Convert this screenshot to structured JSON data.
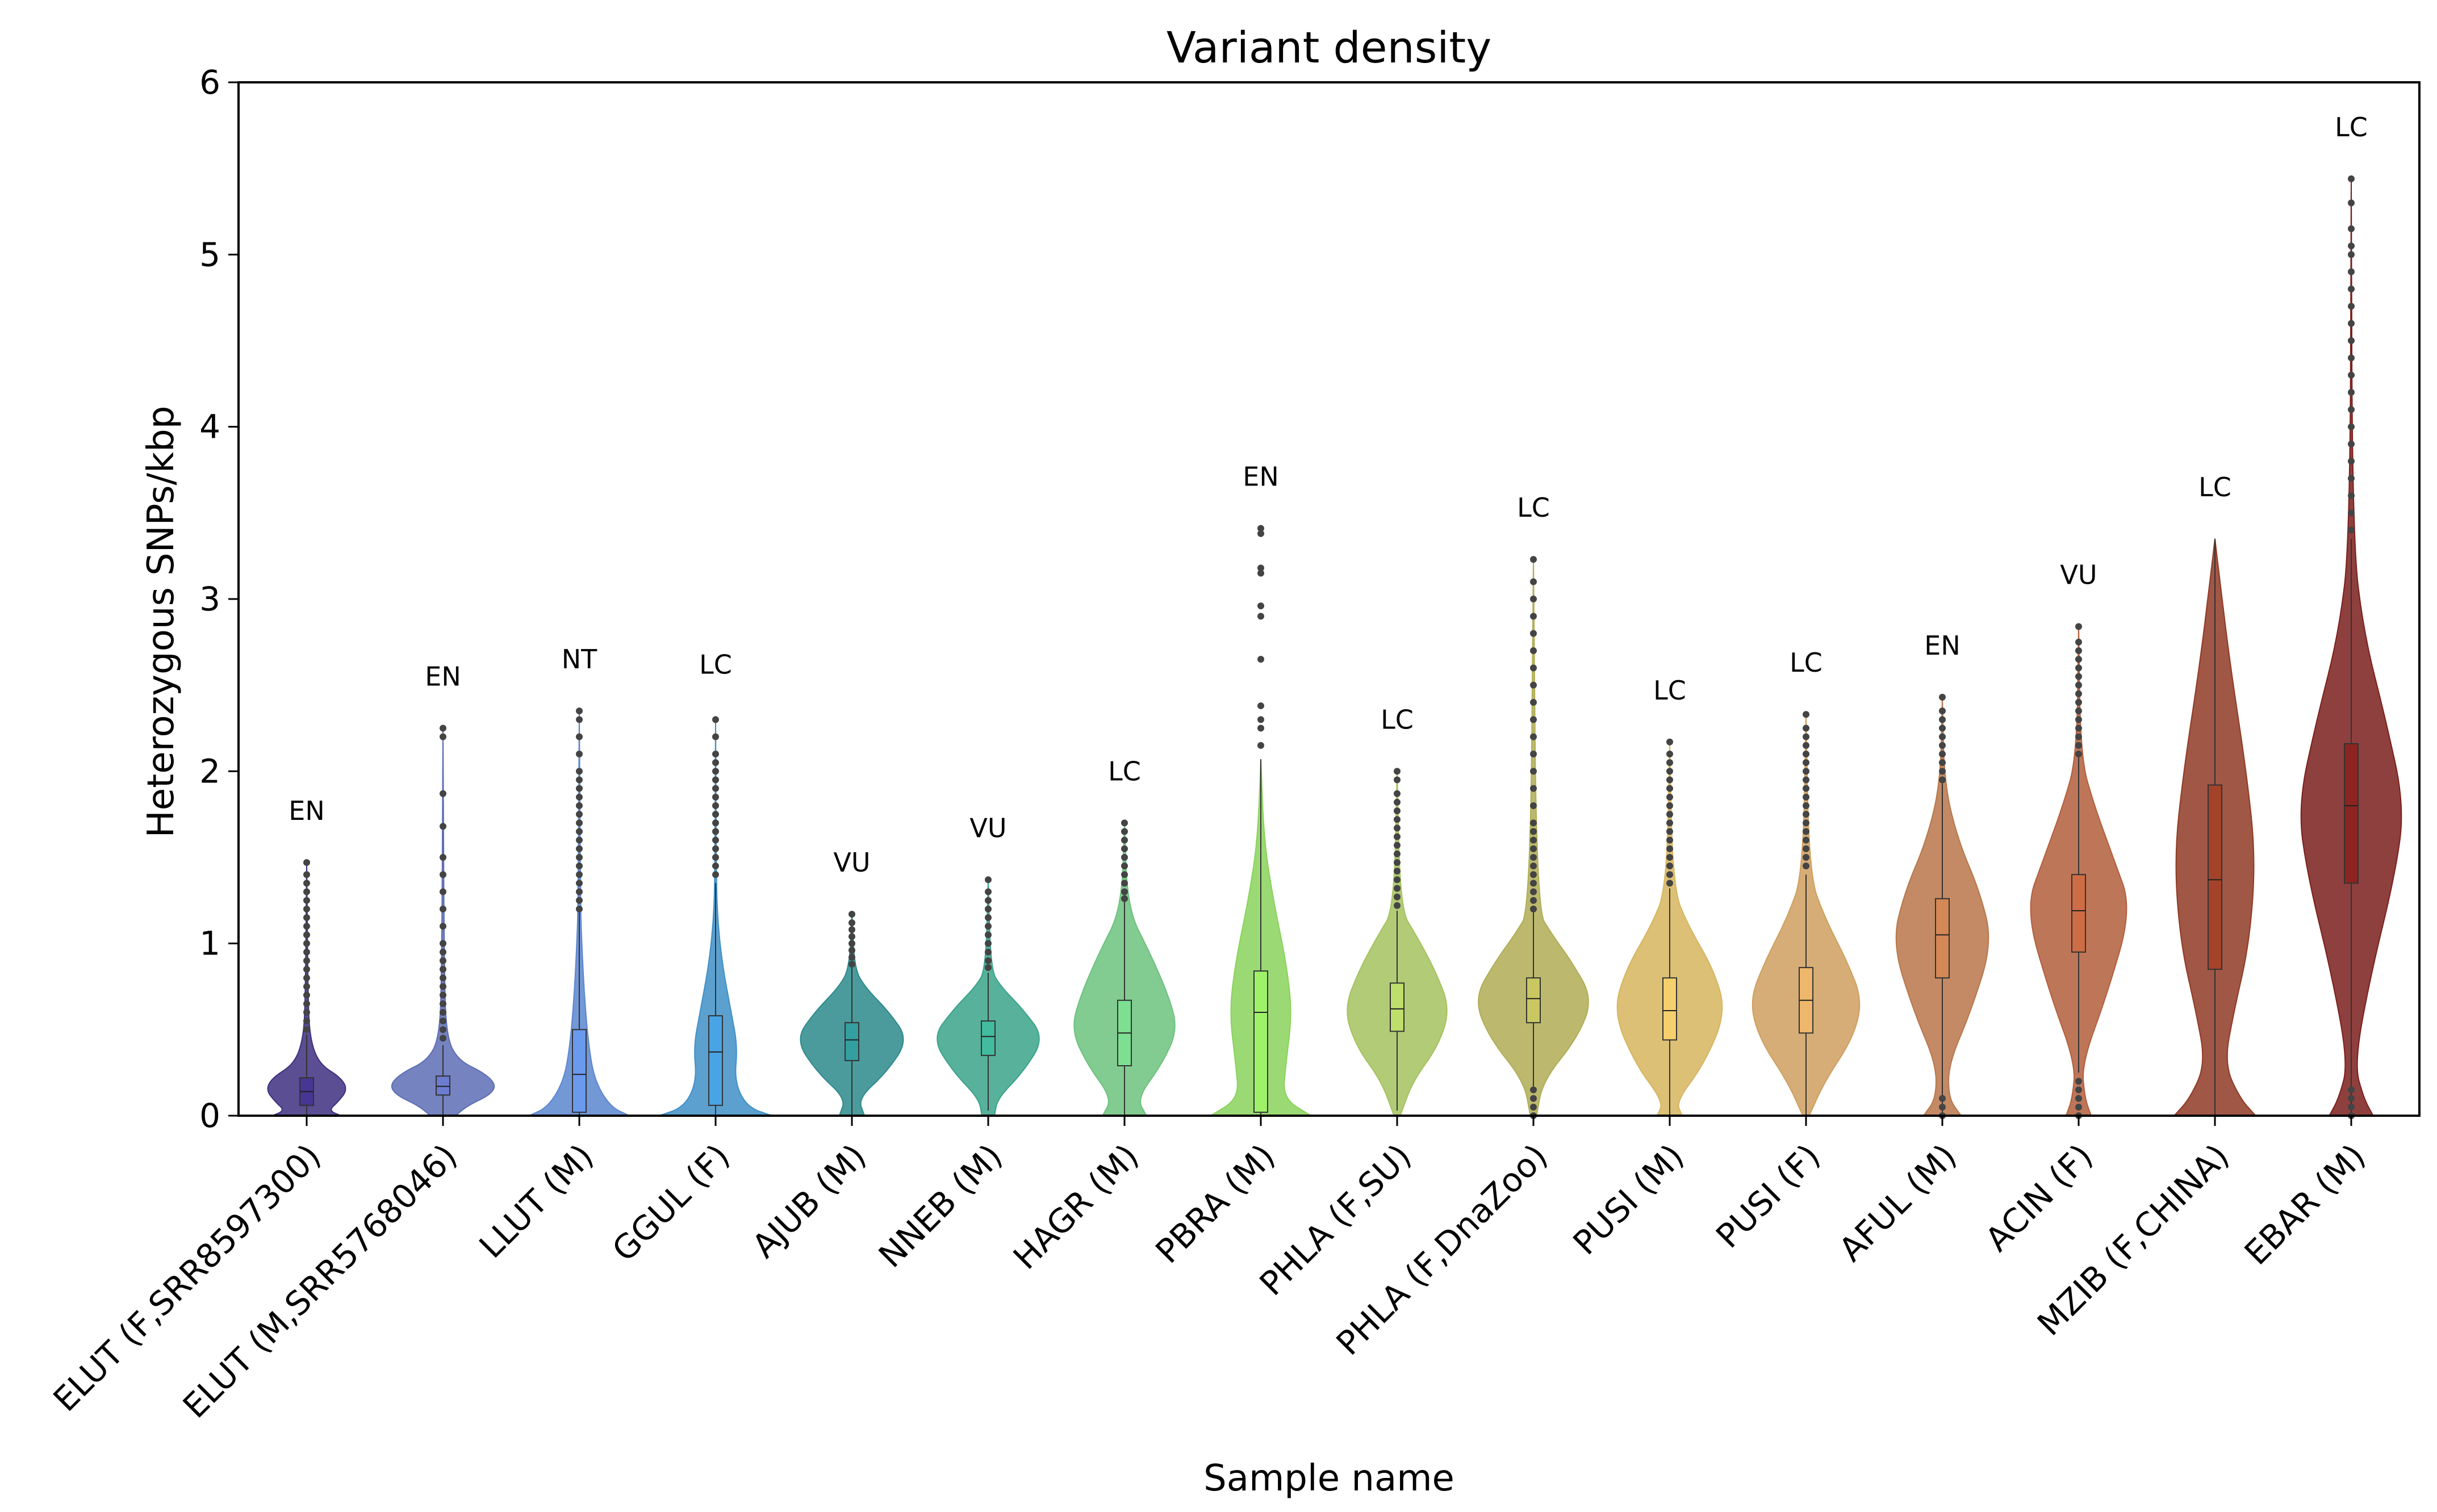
{
  "chart_data": {
    "type": "violin",
    "title": "Variant density",
    "xlabel": "Sample name",
    "ylabel": "Heterozygous SNPs/kbp",
    "ylim": [
      0,
      6
    ],
    "yticks": [
      "0",
      "1",
      "2",
      "3",
      "4",
      "5",
      "6"
    ],
    "grid": false,
    "samples": [
      {
        "name": "ELUT (F,SRR8597300)",
        "status": "EN",
        "color": "#3e2f80",
        "q1": 0.06,
        "median": 0.14,
        "q3": 0.22,
        "whisker_low": 0.0,
        "whisker_high": 0.47,
        "max": 1.47,
        "density": [
          [
            0.0,
            0.55
          ],
          [
            0.03,
            0.35
          ],
          [
            0.08,
            0.5
          ],
          [
            0.15,
            0.65
          ],
          [
            0.22,
            0.55
          ],
          [
            0.3,
            0.2
          ],
          [
            0.45,
            0.05
          ],
          [
            0.7,
            0.02
          ],
          [
            1.47,
            0.0
          ]
        ],
        "outliers": [
          0.5,
          0.55,
          0.6,
          0.65,
          0.7,
          0.75,
          0.8,
          0.85,
          0.9,
          0.95,
          1.0,
          1.05,
          1.1,
          1.15,
          1.2,
          1.25,
          1.3,
          1.35,
          1.4,
          1.47
        ]
      },
      {
        "name": "ELUT (M,SRR5768046)",
        "status": "EN",
        "color": "#5d6db5",
        "q1": 0.12,
        "median": 0.17,
        "q3": 0.23,
        "whisker_low": 0.0,
        "whisker_high": 0.41,
        "max": 2.25,
        "density": [
          [
            0.0,
            0.2
          ],
          [
            0.06,
            0.4
          ],
          [
            0.12,
            0.75
          ],
          [
            0.18,
            0.85
          ],
          [
            0.25,
            0.65
          ],
          [
            0.32,
            0.25
          ],
          [
            0.45,
            0.06
          ],
          [
            0.8,
            0.02
          ],
          [
            2.25,
            0.0
          ]
        ],
        "outliers": [
          0.45,
          0.5,
          0.55,
          0.6,
          0.65,
          0.7,
          0.75,
          0.8,
          0.85,
          0.9,
          0.95,
          1.0,
          1.1,
          1.2,
          1.3,
          1.4,
          1.5,
          1.68,
          1.87,
          2.2,
          2.25
        ]
      },
      {
        "name": "LLUT (M)",
        "status": "NT",
        "color": "#5b86cf",
        "q1": 0.02,
        "median": 0.24,
        "q3": 0.5,
        "whisker_low": 0.0,
        "whisker_high": 1.18,
        "max": 2.35,
        "density": [
          [
            0.0,
            0.8
          ],
          [
            0.05,
            0.5
          ],
          [
            0.2,
            0.25
          ],
          [
            0.4,
            0.15
          ],
          [
            0.7,
            0.08
          ],
          [
            1.0,
            0.04
          ],
          [
            1.2,
            0.02
          ],
          [
            2.35,
            0.0
          ]
        ],
        "outliers": [
          1.2,
          1.25,
          1.3,
          1.35,
          1.4,
          1.45,
          1.5,
          1.55,
          1.6,
          1.65,
          1.7,
          1.75,
          1.8,
          1.85,
          1.9,
          1.95,
          2.0,
          2.1,
          2.2,
          2.3,
          2.35
        ]
      },
      {
        "name": "GGUL (F)",
        "status": "LC",
        "color": "#3f8fc7",
        "q1": 0.06,
        "median": 0.37,
        "q3": 0.58,
        "whisker_low": 0.0,
        "whisker_high": 1.35,
        "max": 2.32,
        "density": [
          [
            0.0,
            0.9
          ],
          [
            0.05,
            0.5
          ],
          [
            0.2,
            0.3
          ],
          [
            0.4,
            0.35
          ],
          [
            0.6,
            0.25
          ],
          [
            0.85,
            0.12
          ],
          [
            1.1,
            0.04
          ],
          [
            1.35,
            0.01
          ],
          [
            2.32,
            0.0
          ]
        ],
        "outliers": [
          1.4,
          1.45,
          1.5,
          1.55,
          1.6,
          1.65,
          1.7,
          1.75,
          1.8,
          1.85,
          1.9,
          1.95,
          2.0,
          2.05,
          2.1,
          2.2,
          2.3
        ]
      },
      {
        "name": "AJUB (M)",
        "status": "VU",
        "color": "#2c8a8c",
        "q1": 0.32,
        "median": 0.44,
        "q3": 0.54,
        "whisker_low": 0.0,
        "whisker_high": 0.86,
        "max": 1.17,
        "density": [
          [
            0.0,
            0.2
          ],
          [
            0.1,
            0.1
          ],
          [
            0.25,
            0.55
          ],
          [
            0.44,
            0.9
          ],
          [
            0.6,
            0.6
          ],
          [
            0.75,
            0.2
          ],
          [
            0.86,
            0.04
          ],
          [
            1.17,
            0.0
          ]
        ],
        "outliers": [
          0.88,
          0.92,
          0.96,
          1.0,
          1.04,
          1.08,
          1.12,
          1.17
        ]
      },
      {
        "name": "NNEB (M)",
        "status": "VU",
        "color": "#3aa38a",
        "q1": 0.35,
        "median": 0.46,
        "q3": 0.55,
        "whisker_low": 0.03,
        "whisker_high": 0.83,
        "max": 1.37,
        "density": [
          [
            0.0,
            0.1
          ],
          [
            0.1,
            0.15
          ],
          [
            0.25,
            0.55
          ],
          [
            0.45,
            0.9
          ],
          [
            0.62,
            0.55
          ],
          [
            0.75,
            0.2
          ],
          [
            0.85,
            0.04
          ],
          [
            1.37,
            0.0
          ]
        ],
        "outliers": [
          0.86,
          0.9,
          0.95,
          1.0,
          1.05,
          1.1,
          1.15,
          1.2,
          1.25,
          1.3,
          1.37
        ]
      },
      {
        "name": "HAGR (M)",
        "status": "LC",
        "color": "#6cc27e",
        "q1": 0.29,
        "median": 0.48,
        "q3": 0.67,
        "whisker_low": 0.0,
        "whisker_high": 1.24,
        "max": 1.7,
        "density": [
          [
            0.0,
            0.35
          ],
          [
            0.1,
            0.2
          ],
          [
            0.3,
            0.6
          ],
          [
            0.5,
            0.85
          ],
          [
            0.7,
            0.7
          ],
          [
            0.95,
            0.4
          ],
          [
            1.2,
            0.05
          ],
          [
            1.7,
            0.0
          ]
        ],
        "outliers": [
          1.26,
          1.3,
          1.35,
          1.4,
          1.45,
          1.5,
          1.55,
          1.6,
          1.65,
          1.7
        ]
      },
      {
        "name": "PBRA (M)",
        "status": "EN",
        "color": "#8ad25c",
        "q1": 0.02,
        "median": 0.6,
        "q3": 0.84,
        "whisker_low": 0.0,
        "whisker_high": 2.07,
        "max": 3.41,
        "density": [
          [
            0.0,
            0.8
          ],
          [
            0.1,
            0.35
          ],
          [
            0.3,
            0.4
          ],
          [
            0.6,
            0.5
          ],
          [
            0.9,
            0.4
          ],
          [
            1.25,
            0.2
          ],
          [
            1.6,
            0.05
          ],
          [
            2.07,
            0.0
          ]
        ],
        "outliers": [
          2.15,
          2.25,
          2.3,
          2.38,
          2.65,
          2.9,
          2.96,
          3.15,
          3.18,
          3.38,
          3.41
        ]
      },
      {
        "name": "PHLA (F,SU)",
        "status": "LC",
        "color": "#a5c25e",
        "q1": 0.49,
        "median": 0.62,
        "q3": 0.77,
        "whisker_low": 0.03,
        "whisker_high": 1.19,
        "max": 2.0,
        "density": [
          [
            0.0,
            0.05
          ],
          [
            0.2,
            0.25
          ],
          [
            0.4,
            0.65
          ],
          [
            0.62,
            0.85
          ],
          [
            0.85,
            0.6
          ],
          [
            1.05,
            0.3
          ],
          [
            1.2,
            0.05
          ],
          [
            2.0,
            0.0
          ]
        ],
        "outliers": [
          1.22,
          1.27,
          1.32,
          1.37,
          1.42,
          1.47,
          1.52,
          1.57,
          1.62,
          1.67,
          1.72,
          1.77,
          1.82,
          1.87,
          1.95,
          2.0
        ]
      },
      {
        "name": "PHLA (F,DnaZoo)",
        "status": "LC",
        "color": "#b0ad55",
        "q1": 0.54,
        "median": 0.68,
        "q3": 0.8,
        "whisker_low": 0.17,
        "whisker_high": 1.18,
        "max": 3.23,
        "density": [
          [
            0.0,
            0.05
          ],
          [
            0.2,
            0.15
          ],
          [
            0.45,
            0.7
          ],
          [
            0.68,
            0.95
          ],
          [
            0.9,
            0.6
          ],
          [
            1.05,
            0.3
          ],
          [
            1.2,
            0.05
          ],
          [
            3.23,
            0.0
          ]
        ],
        "outliers": [
          0.0,
          0.05,
          0.1,
          0.15,
          1.2,
          1.25,
          1.3,
          1.35,
          1.4,
          1.45,
          1.5,
          1.55,
          1.6,
          1.65,
          1.7,
          1.8,
          1.9,
          2.0,
          2.1,
          2.2,
          2.3,
          2.4,
          2.5,
          2.6,
          2.7,
          2.8,
          2.9,
          3.0,
          3.1,
          3.23
        ]
      },
      {
        "name": "PUSI (M)",
        "status": "LC",
        "color": "#d6b55e",
        "q1": 0.44,
        "median": 0.61,
        "q3": 0.8,
        "whisker_low": 0.0,
        "whisker_high": 1.32,
        "max": 2.17,
        "density": [
          [
            0.0,
            0.2
          ],
          [
            0.08,
            0.1
          ],
          [
            0.3,
            0.55
          ],
          [
            0.6,
            0.9
          ],
          [
            0.85,
            0.7
          ],
          [
            1.1,
            0.3
          ],
          [
            1.32,
            0.05
          ],
          [
            2.17,
            0.0
          ]
        ],
        "outliers": [
          1.35,
          1.4,
          1.45,
          1.5,
          1.55,
          1.6,
          1.65,
          1.7,
          1.75,
          1.8,
          1.85,
          1.9,
          1.95,
          2.0,
          2.05,
          2.1,
          2.17
        ]
      },
      {
        "name": "PUSI (F)",
        "status": "LC",
        "color": "#cf9f5e",
        "q1": 0.48,
        "median": 0.67,
        "q3": 0.86,
        "whisker_low": 0.0,
        "whisker_high": 1.4,
        "max": 2.33,
        "density": [
          [
            0.0,
            0.05
          ],
          [
            0.2,
            0.3
          ],
          [
            0.45,
            0.75
          ],
          [
            0.67,
            0.9
          ],
          [
            0.9,
            0.65
          ],
          [
            1.15,
            0.3
          ],
          [
            1.4,
            0.05
          ],
          [
            2.33,
            0.0
          ]
        ],
        "outliers": [
          1.45,
          1.5,
          1.55,
          1.6,
          1.65,
          1.7,
          1.75,
          1.8,
          1.85,
          1.9,
          1.95,
          2.0,
          2.05,
          2.1,
          2.15,
          2.2,
          2.25,
          2.33
        ]
      },
      {
        "name": "AFUL (M)",
        "status": "EN",
        "color": "#b8764a",
        "q1": 0.8,
        "median": 1.05,
        "q3": 1.26,
        "whisker_low": 0.0,
        "whisker_high": 1.93,
        "max": 2.43,
        "density": [
          [
            0.0,
            0.3
          ],
          [
            0.1,
            0.1
          ],
          [
            0.3,
            0.1
          ],
          [
            0.6,
            0.45
          ],
          [
            1.0,
            0.8
          ],
          [
            1.3,
            0.6
          ],
          [
            1.6,
            0.25
          ],
          [
            1.93,
            0.03
          ],
          [
            2.43,
            0.0
          ]
        ],
        "outliers": [
          0.0,
          0.05,
          0.1,
          1.95,
          2.0,
          2.05,
          2.1,
          2.15,
          2.2,
          2.25,
          2.3,
          2.35,
          2.43
        ]
      },
      {
        "name": "ACIN (F)",
        "status": "VU",
        "color": "#b35e3c",
        "q1": 0.95,
        "median": 1.19,
        "q3": 1.4,
        "whisker_low": 0.25,
        "whisker_high": 2.08,
        "max": 2.84,
        "density": [
          [
            0.0,
            0.2
          ],
          [
            0.1,
            0.1
          ],
          [
            0.3,
            0.05
          ],
          [
            0.7,
            0.45
          ],
          [
            1.2,
            0.85
          ],
          [
            1.5,
            0.55
          ],
          [
            1.8,
            0.25
          ],
          [
            2.08,
            0.03
          ],
          [
            2.84,
            0.0
          ]
        ],
        "outliers": [
          0.0,
          0.05,
          0.1,
          0.15,
          0.2,
          2.1,
          2.15,
          2.2,
          2.25,
          2.3,
          2.35,
          2.4,
          2.45,
          2.5,
          2.55,
          2.6,
          2.65,
          2.7,
          2.75,
          2.84
        ]
      },
      {
        "name": "MZIB (F,CHINA)",
        "status": "LC",
        "color": "#8f3a24",
        "q1": 0.85,
        "median": 1.37,
        "q3": 1.92,
        "whisker_low": 0.0,
        "whisker_high": 3.35,
        "max": 3.35,
        "density": [
          [
            0.0,
            0.65
          ],
          [
            0.1,
            0.4
          ],
          [
            0.3,
            0.15
          ],
          [
            0.6,
            0.3
          ],
          [
            1.0,
            0.55
          ],
          [
            1.5,
            0.65
          ],
          [
            2.0,
            0.5
          ],
          [
            2.6,
            0.25
          ],
          [
            3.1,
            0.08
          ],
          [
            3.35,
            0.0
          ]
        ],
        "outliers": []
      },
      {
        "name": "EBAR (M)",
        "status": "LC",
        "color": "#7a1f1c",
        "q1": 1.35,
        "median": 1.8,
        "q3": 2.16,
        "whisker_low": 0.0,
        "whisker_high": 3.35,
        "max": 5.44,
        "density": [
          [
            0.0,
            0.35
          ],
          [
            0.1,
            0.2
          ],
          [
            0.3,
            0.05
          ],
          [
            0.8,
            0.3
          ],
          [
            1.4,
            0.7
          ],
          [
            1.8,
            0.85
          ],
          [
            2.3,
            0.55
          ],
          [
            2.8,
            0.2
          ],
          [
            3.35,
            0.02
          ],
          [
            5.44,
            0.0
          ]
        ],
        "outliers": [
          0.0,
          0.05,
          0.1,
          0.15,
          3.4,
          3.5,
          3.6,
          3.7,
          3.8,
          3.9,
          4.0,
          4.1,
          4.2,
          4.3,
          4.4,
          4.5,
          4.6,
          4.7,
          4.8,
          4.9,
          5.0,
          5.05,
          5.15,
          5.3,
          5.44
        ]
      }
    ]
  }
}
